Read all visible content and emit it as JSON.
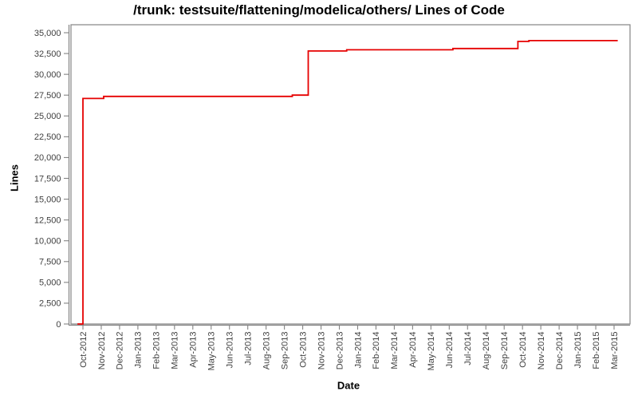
{
  "page": {
    "background_color": "#ffffff"
  },
  "chart_data": {
    "type": "line",
    "title": "/trunk: testsuite/flattening/modelica/others/ Lines of Code",
    "xlabel": "Date",
    "ylabel": "Lines",
    "legend": false,
    "grid": false,
    "x_unit": "months since Oct-2012",
    "x_tick_labels": [
      "Oct-2012",
      "Nov-2012",
      "Dec-2012",
      "Jan-2013",
      "Feb-2013",
      "Mar-2013",
      "Apr-2013",
      "May-2013",
      "Jun-2013",
      "Jul-2013",
      "Aug-2013",
      "Sep-2013",
      "Oct-2013",
      "Nov-2013",
      "Dec-2013",
      "Jan-2014",
      "Feb-2014",
      "Mar-2014",
      "Apr-2014",
      "May-2014",
      "Jun-2014",
      "Jul-2014",
      "Aug-2014",
      "Sep-2014",
      "Oct-2014",
      "Nov-2014",
      "Dec-2014",
      "Jan-2015",
      "Feb-2015",
      "Mar-2015"
    ],
    "y_tick_values": [
      0,
      2500,
      5000,
      7500,
      10000,
      12500,
      15000,
      17500,
      20000,
      22500,
      25000,
      27500,
      30000,
      32500,
      35000
    ],
    "y_tick_labels": [
      "0",
      "2,500",
      "5,000",
      "7,500",
      "10,000",
      "12,500",
      "15,000",
      "17,500",
      "20,000",
      "22,500",
      "25,000",
      "27,500",
      "30,000",
      "32,500",
      "35,000"
    ],
    "ylim": [
      0,
      35960
    ],
    "axis_color": "#848484",
    "tick_label_color": "#3f3f3f",
    "series": [
      {
        "name": "Lines of Code",
        "color": "#e60000",
        "points": [
          [
            -0.3,
            0
          ],
          [
            0.0,
            0
          ],
          [
            0.0,
            27100
          ],
          [
            1.13,
            27100
          ],
          [
            1.13,
            27350
          ],
          [
            11.43,
            27350
          ],
          [
            11.43,
            27500
          ],
          [
            12.3,
            27500
          ],
          [
            12.3,
            32800
          ],
          [
            14.4,
            32800
          ],
          [
            14.4,
            32950
          ],
          [
            20.2,
            32950
          ],
          [
            20.2,
            33100
          ],
          [
            23.75,
            33100
          ],
          [
            23.75,
            33950
          ],
          [
            24.35,
            33950
          ],
          [
            24.35,
            34050
          ],
          [
            29.2,
            34050
          ]
        ]
      }
    ]
  }
}
